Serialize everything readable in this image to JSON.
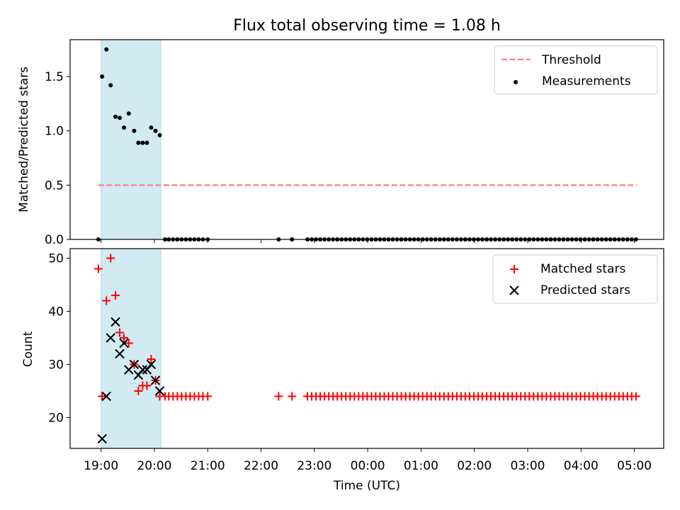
{
  "chart_data": [
    {
      "type": "scatter",
      "title": "Flux total observing time = 1.08 h",
      "xlabel": "",
      "ylabel": "Matched/Predicted stars",
      "ylim": [
        0,
        1.84
      ],
      "yticks": [
        0.0,
        0.5,
        1.0,
        1.5
      ],
      "ytick_labels": [
        "0.0",
        "0.5",
        "1.0",
        "1.5"
      ],
      "x_unit": "hours since 19:00 UTC",
      "xlim": [
        -0.58,
        10.55
      ],
      "shaded_span": [
        0.0,
        1.12
      ],
      "shade_color": "#add8e6",
      "threshold": {
        "name": "Threshold",
        "y": 0.5,
        "x_range": [
          -0.05,
          10.05
        ],
        "color": "#ff7f7f"
      },
      "legend_position": "upper right",
      "legend": [
        "Threshold",
        "Measurements"
      ],
      "series": [
        {
          "name": "Measurements",
          "color": "#000000",
          "x": [
            -0.05,
            0.02,
            0.1,
            0.18,
            0.27,
            0.35,
            0.43,
            0.52,
            0.62,
            0.7,
            0.78,
            0.86,
            0.94,
            1.02,
            1.1
          ],
          "y": [
            0.0,
            1.5,
            1.75,
            1.42,
            1.13,
            1.12,
            1.03,
            1.16,
            1.0,
            0.89,
            0.89,
            0.89,
            1.03,
            1.0,
            0.96
          ],
          "zero_points_x": [
            1.2,
            1.27,
            1.35,
            1.43,
            1.51,
            1.59,
            1.67,
            1.75,
            1.83,
            1.91,
            2.0,
            3.33,
            3.58,
            3.87,
            3.95,
            4.03,
            4.11,
            4.19,
            4.27,
            4.35,
            4.43,
            4.51,
            4.59,
            4.67,
            4.75,
            4.83,
            4.91,
            4.99,
            5.07,
            5.15,
            5.23,
            5.31,
            5.39,
            5.47,
            5.55,
            5.63,
            5.71,
            5.79,
            5.87,
            5.95,
            6.03,
            6.11,
            6.19,
            6.27,
            6.35,
            6.43,
            6.51,
            6.59,
            6.67,
            6.75,
            6.83,
            6.91,
            6.99,
            7.07,
            7.15,
            7.23,
            7.31,
            7.39,
            7.47,
            7.55,
            7.63,
            7.71,
            7.79,
            7.87,
            7.95,
            8.03,
            8.11,
            8.19,
            8.27,
            8.35,
            8.43,
            8.51,
            8.59,
            8.67,
            8.75,
            8.83,
            8.91,
            8.99,
            9.07,
            9.15,
            9.23,
            9.31,
            9.39,
            9.47,
            9.55,
            9.63,
            9.71,
            9.79,
            9.87,
            9.95,
            10.03
          ]
        }
      ]
    },
    {
      "type": "scatter",
      "title": "",
      "xlabel": "Time (UTC)",
      "ylabel": "Count",
      "ylim": [
        14.2,
        51.8
      ],
      "yticks": [
        20,
        30,
        40,
        50
      ],
      "ytick_labels": [
        "20",
        "30",
        "40",
        "50"
      ],
      "xlim": [
        -0.58,
        10.55
      ],
      "xticks": [
        0,
        1,
        2,
        3,
        4,
        5,
        6,
        7,
        8,
        9,
        10
      ],
      "xtick_labels": [
        "19:00",
        "20:00",
        "21:00",
        "22:00",
        "23:00",
        "00:00",
        "01:00",
        "02:00",
        "03:00",
        "04:00",
        "05:00"
      ],
      "shaded_span": [
        0.0,
        1.12
      ],
      "legend_position": "upper right",
      "legend": [
        "Matched stars",
        "Predicted stars"
      ],
      "series": [
        {
          "name": "Matched stars",
          "marker": "+",
          "color": "#ff0000",
          "x": [
            -0.05,
            0.02,
            0.1,
            0.18,
            0.27,
            0.35,
            0.43,
            0.52,
            0.62,
            0.7,
            0.78,
            0.86,
            0.94,
            1.02,
            1.1
          ],
          "y": [
            48,
            24,
            42,
            50,
            43,
            36,
            35,
            34,
            30,
            25,
            26,
            26,
            31,
            27,
            24
          ],
          "baseline_y": 24,
          "baseline_x": [
            1.2,
            1.27,
            1.35,
            1.43,
            1.51,
            1.59,
            1.67,
            1.75,
            1.83,
            1.91,
            2.0,
            3.33,
            3.58,
            3.87,
            3.95,
            4.03,
            4.11,
            4.19,
            4.27,
            4.35,
            4.43,
            4.51,
            4.59,
            4.67,
            4.75,
            4.83,
            4.91,
            4.99,
            5.07,
            5.15,
            5.23,
            5.31,
            5.39,
            5.47,
            5.55,
            5.63,
            5.71,
            5.79,
            5.87,
            5.95,
            6.03,
            6.11,
            6.19,
            6.27,
            6.35,
            6.43,
            6.51,
            6.59,
            6.67,
            6.75,
            6.83,
            6.91,
            6.99,
            7.07,
            7.15,
            7.23,
            7.31,
            7.39,
            7.47,
            7.55,
            7.63,
            7.71,
            7.79,
            7.87,
            7.95,
            8.03,
            8.11,
            8.19,
            8.27,
            8.35,
            8.43,
            8.51,
            8.59,
            8.67,
            8.75,
            8.83,
            8.91,
            8.99,
            9.07,
            9.15,
            9.23,
            9.31,
            9.39,
            9.47,
            9.55,
            9.63,
            9.71,
            9.79,
            9.87,
            9.95,
            10.03
          ]
        },
        {
          "name": "Predicted stars",
          "marker": "x",
          "color": "#000000",
          "x": [
            0.02,
            0.1,
            0.18,
            0.27,
            0.35,
            0.43,
            0.52,
            0.62,
            0.7,
            0.78,
            0.86,
            0.94,
            1.02,
            1.1
          ],
          "y": [
            16,
            24,
            35,
            38,
            32,
            34,
            29,
            30,
            28,
            29,
            29,
            30,
            27,
            25
          ]
        }
      ]
    }
  ]
}
